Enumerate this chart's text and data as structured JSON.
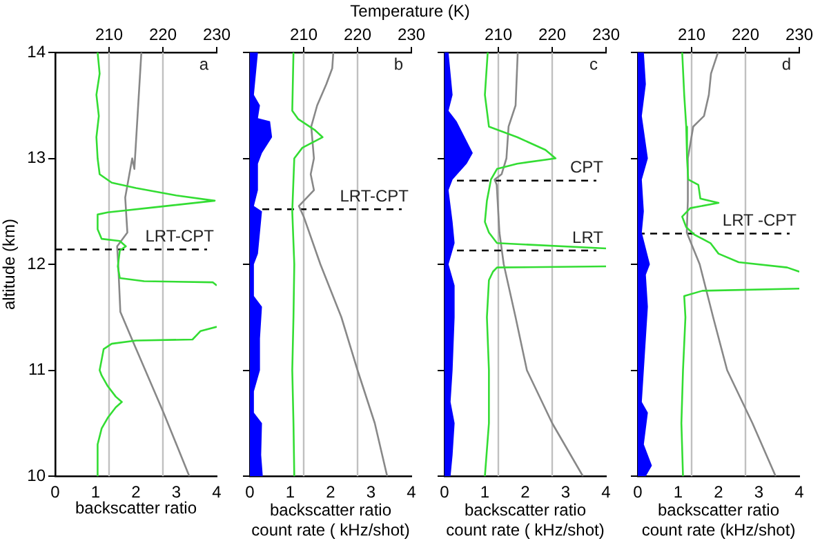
{
  "chart_data": [
    {
      "type": "line",
      "xlabel": "backscatter ratio",
      "ylabel": "altitude (km)",
      "xlim": [
        0,
        4
      ],
      "xticks": [
        0,
        1,
        2,
        3,
        4
      ],
      "x2lim": [
        200,
        230
      ],
      "x2ticks": [
        210,
        220,
        230
      ],
      "ylim": [
        10,
        14
      ],
      "yticks": [
        10,
        11,
        12,
        13,
        14
      ],
      "annotations": [
        "a"
      ],
      "series": [
        {
          "color": "#33dd33",
          "x": [
            1.05,
            1.1,
            1.02,
            1.08,
            1.02,
            1.05,
            1.1,
            1.4,
            2.0,
            3.0,
            3.95,
            2.5,
            1.3,
            1.05,
            1.05,
            1.15,
            1.6,
            1.75,
            1.6,
            1.55,
            1.6,
            2.2,
            3.9,
            4.0,
            null,
            4.0,
            3.6,
            3.5,
            3.4,
            2.0,
            1.4,
            1.2,
            1.15,
            1.1,
            1.15,
            1.3,
            1.5,
            1.65,
            1.5,
            1.3,
            1.15,
            1.05,
            1.05
          ],
          "values": [
            14,
            13.8,
            13.6,
            13.4,
            13.2,
            13.0,
            12.85,
            12.77,
            12.72,
            12.65,
            12.6,
            12.54,
            12.49,
            12.47,
            12.33,
            12.24,
            12.22,
            12.17,
            12.13,
            11.98,
            11.87,
            11.84,
            11.83,
            11.8,
            null,
            11.41,
            11.37,
            11.33,
            11.29,
            11.28,
            11.25,
            11.2,
            11.1,
            11.0,
            10.95,
            10.85,
            10.75,
            10.7,
            10.65,
            10.55,
            10.45,
            10.3,
            10.0
          ]
        },
        {
          "color": "#888888",
          "axis": "x2",
          "x": [
            216,
            214.7,
            214.3,
            213,
            213.4,
            211.5,
            211.7,
            212.1,
            214.7,
            220.2,
            224.9
          ],
          "values": [
            14,
            12.9,
            13.0,
            12.63,
            12.3,
            12.17,
            12.0,
            11.55,
            11.24,
            10.59,
            10.0
          ]
        }
      ],
      "ref_lines": [
        {
          "axis": "x2",
          "value": 210,
          "color": "#c0c0c0"
        },
        {
          "axis": "x2",
          "value": 220,
          "color": "#c0c0c0"
        },
        {
          "axis": "y",
          "value": 12.14,
          "label": "LRT-CPT",
          "line_style": "dashed",
          "color": "#000000"
        }
      ]
    },
    {
      "type": "line",
      "xlabel": "backscatter ratio\ncount rate ( kHz/shot)",
      "x2label": "Temperature (K)",
      "xlim": [
        0,
        4
      ],
      "xticks": [
        0,
        1,
        2,
        3,
        4
      ],
      "x2lim": [
        200,
        230
      ],
      "x2ticks": [
        210,
        220,
        230
      ],
      "ylim": [
        10,
        14
      ],
      "yticks": [
        10,
        11,
        12,
        13,
        14
      ],
      "tick_labels": "x",
      "annotations": [
        "b"
      ],
      "series": [
        {
          "type": "area",
          "color": "#0000ff",
          "x": [
            0,
            0.2,
            0.1,
            0.25,
            0.2,
            0.5,
            0.55,
            0.3,
            0.2,
            0.2,
            0.1,
            0.3,
            0.25,
            0.2,
            0.1,
            0.1,
            0.3,
            0.25,
            0.25,
            0.1,
            0.1,
            0.3,
            0.28,
            0.32,
            0
          ],
          "values": [
            14,
            14,
            13.6,
            13.5,
            13.38,
            13.35,
            13.2,
            13.05,
            12.95,
            12.7,
            12.55,
            12.5,
            12.3,
            12.1,
            12.0,
            11.7,
            11.6,
            11.3,
            11.0,
            10.8,
            10.6,
            10.5,
            10.2,
            10.0,
            10.0
          ]
        },
        {
          "color": "#33dd33",
          "x": [
            1.08,
            1.05,
            1.2,
            1.6,
            1.8,
            1.3,
            1.1,
            1.05,
            1.1,
            1.08,
            1.05,
            1.08,
            1.1
          ],
          "values": [
            14,
            13.45,
            13.37,
            13.27,
            13.2,
            13.1,
            13.0,
            12.5,
            12.0,
            11.5,
            11.0,
            10.5,
            10.0
          ]
        },
        {
          "color": "#888888",
          "axis": "x2",
          "x": [
            215.5,
            215.3,
            214.2,
            212.5,
            211.4,
            211.9,
            211.3,
            211.9,
            209.1,
            210,
            213.1,
            217,
            220,
            223.2,
            225.5
          ],
          "values": [
            14,
            13.85,
            13.7,
            13.5,
            13.3,
            13.0,
            12.85,
            12.7,
            12.55,
            12.45,
            12.0,
            11.5,
            11.0,
            10.5,
            10.0
          ]
        }
      ],
      "ref_lines": [
        {
          "axis": "x2",
          "value": 210,
          "color": "#c0c0c0"
        },
        {
          "axis": "x2",
          "value": 220,
          "color": "#c0c0c0"
        },
        {
          "axis": "y",
          "value": 12.52,
          "label": "LRT-CPT",
          "line_style": "dashed",
          "color": "#000000"
        }
      ]
    },
    {
      "type": "line",
      "xlabel": "backscatter ratio\ncount rate ( kHz/shot)",
      "xlim": [
        0,
        4
      ],
      "xticks": [
        0,
        1,
        2,
        3,
        4
      ],
      "x2lim": [
        200,
        230
      ],
      "x2ticks": [
        210,
        220,
        230
      ],
      "ylim": [
        10,
        14
      ],
      "yticks": [
        10,
        11,
        12,
        13,
        14
      ],
      "tick_labels": "x",
      "annotations": [
        "c"
      ],
      "series": [
        {
          "type": "area",
          "color": "#0000ff",
          "x": [
            0,
            0.1,
            0.2,
            0.1,
            0.3,
            0.5,
            0.7,
            0.55,
            0.2,
            0.1,
            0.2,
            0.25,
            0.1,
            0.25,
            0.25,
            0.2,
            0.15,
            0.25,
            0.2,
            0.15,
            0
          ],
          "values": [
            14,
            14,
            13.6,
            13.45,
            13.35,
            13.2,
            13.05,
            12.95,
            12.8,
            12.7,
            12.4,
            12.2,
            12.0,
            11.8,
            11.5,
            11.0,
            10.7,
            10.5,
            10.2,
            10.0,
            10.0
          ]
        },
        {
          "color": "#33dd33",
          "x": [
            1.07,
            1.0,
            1.1,
            1.8,
            2.5,
            2.75,
            1.8,
            1.3,
            1.15,
            1.05,
            1.0,
            1.1,
            1.3,
            4.0,
            null,
            4.0,
            1.3,
            1.2,
            1.1,
            1.05,
            1.1,
            1.1,
            1.0
          ],
          "values": [
            14,
            13.6,
            13.3,
            13.2,
            13.08,
            13.0,
            12.95,
            12.9,
            12.8,
            12.6,
            12.4,
            12.3,
            12.2,
            12.15,
            null,
            11.98,
            11.97,
            11.93,
            11.85,
            11.5,
            11.0,
            10.5,
            10.0
          ]
        },
        {
          "color": "#888888",
          "axis": "x2",
          "x": [
            213.6,
            213.2,
            211.9,
            211.5,
            210.6,
            209.3,
            209.7,
            210.2,
            211,
            213.2,
            215.3,
            220,
            225.7
          ],
          "values": [
            14,
            13.5,
            13.3,
            13.0,
            12.85,
            12.8,
            12.75,
            12.3,
            12.0,
            11.5,
            11.0,
            10.5,
            10.0
          ]
        }
      ],
      "ref_lines": [
        {
          "axis": "x2",
          "value": 210,
          "color": "#c0c0c0"
        },
        {
          "axis": "x2",
          "value": 220,
          "color": "#c0c0c0"
        },
        {
          "axis": "y",
          "value": 12.79,
          "label": "CPT",
          "line_style": "dashed",
          "color": "#000000"
        },
        {
          "axis": "y",
          "value": 12.13,
          "label": "LRT",
          "line_style": "dashed",
          "color": "#000000"
        }
      ]
    },
    {
      "type": "line",
      "xlabel": "backscatter ratio\ncount rate (kHz/shot)",
      "xlim": [
        0,
        4
      ],
      "xticks": [
        0,
        1,
        2,
        3,
        4
      ],
      "x2lim": [
        200,
        230
      ],
      "x2ticks": [
        210,
        220,
        230
      ],
      "ylim": [
        10,
        14
      ],
      "yticks": [
        10,
        11,
        12,
        13,
        14
      ],
      "tick_labels": "x",
      "annotations": [
        "d"
      ],
      "series": [
        {
          "type": "area",
          "color": "#0000ff",
          "x": [
            0,
            0.15,
            0.2,
            0.1,
            0.25,
            0.1,
            0.15,
            0.1,
            0.3,
            0.2,
            0.25,
            0.2,
            0.15,
            0.1,
            0.25,
            0.15,
            0.35,
            0.2,
            0
          ],
          "values": [
            14,
            14,
            13.7,
            13.4,
            13.0,
            12.8,
            12.5,
            12.3,
            12.0,
            11.9,
            11.6,
            11.3,
            11.0,
            10.7,
            10.6,
            10.3,
            10.1,
            10.0,
            10.0
          ]
        },
        {
          "color": "#33dd33",
          "x": [
            1.1,
            1.15,
            1.2,
            1.22,
            1.25,
            1.5,
            1.55,
            2.0,
            1.3,
            1.1,
            1.2,
            1.4,
            1.8,
            2.0,
            2.5,
            3.7,
            4.0,
            null,
            4.0,
            1.6,
            1.15,
            1.18,
            1.12,
            1.08,
            1.12
          ],
          "values": [
            14,
            13.6,
            13.3,
            13.0,
            12.8,
            12.75,
            12.62,
            12.58,
            12.53,
            12.45,
            12.35,
            12.28,
            12.2,
            12.1,
            12.02,
            11.97,
            11.93,
            null,
            11.77,
            11.75,
            11.7,
            11.5,
            11.0,
            10.5,
            10.0
          ]
        },
        {
          "color": "#888888",
          "axis": "x2",
          "x": [
            214.9,
            213.6,
            213.2,
            212.3,
            210.3,
            209.3,
            209.3,
            209.1,
            211.5,
            214,
            216.6,
            221.3,
            225.6
          ],
          "values": [
            14,
            13.8,
            13.6,
            13.4,
            13.3,
            13.0,
            12.6,
            12.3,
            12.0,
            11.5,
            11.0,
            10.5,
            10.0
          ]
        }
      ],
      "ref_lines": [
        {
          "axis": "x2",
          "value": 210,
          "color": "#c0c0c0"
        },
        {
          "axis": "x2",
          "value": 220,
          "color": "#c0c0c0"
        },
        {
          "axis": "y",
          "value": 12.29,
          "label": "LRT -CPT",
          "line_style": "dashed",
          "color": "#000000"
        }
      ]
    }
  ]
}
